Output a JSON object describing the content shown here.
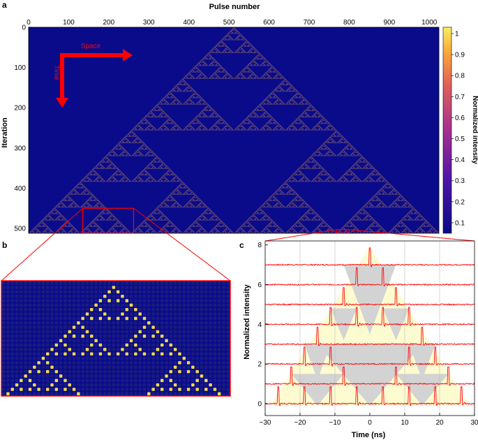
{
  "panels": {
    "a": "a",
    "b": "b",
    "c": "c"
  },
  "colors": {
    "background": "#0a0b8a",
    "pattern_on": "#f2d84a",
    "trace": "#ff0000",
    "zoom_box": "#ff0000",
    "triangle_fill": "#fdfbd0",
    "hole_fill": "#d3d3d3"
  },
  "chart_data": [
    {
      "panel": "a",
      "type": "heatmap",
      "title": "",
      "xlabel": "Pulse number",
      "ylabel": "Iteration",
      "x_ticks": [
        "0",
        "100",
        "200",
        "300",
        "400",
        "500",
        "600",
        "700",
        "800",
        "900",
        "1000"
      ],
      "y_ticks": [
        "0",
        "100",
        "200",
        "300",
        "400",
        "500"
      ],
      "xlim": [
        0,
        1024
      ],
      "ylim": [
        0,
        512
      ],
      "pattern": "Sierpinski triangle (rule 90), apex at pulse 512, iteration 0",
      "colorbar": {
        "label": "Normalized intensity",
        "ticks": [
          "0.1",
          "0.2",
          "0.3",
          "0.4",
          "0.5",
          "0.6",
          "0.7",
          "0.8",
          "0.9",
          "1"
        ],
        "range": [
          0.05,
          1.03
        ]
      },
      "annotations": {
        "space": "Space",
        "time": "Time"
      },
      "zoom_regions": [
        {
          "x_range": [
            135,
            262
          ],
          "y_range": [
            450,
            512
          ],
          "target_panel": "b"
        },
        {
          "x_range": [
            768,
            800
          ],
          "y_range": [
            503,
            512
          ],
          "target_panel": "c"
        }
      ]
    },
    {
      "panel": "b",
      "type": "heatmap",
      "title": "",
      "cols": 52,
      "rows": 26,
      "pattern": "magnified region of the Sierpinski pattern"
    },
    {
      "panel": "c",
      "type": "line",
      "title": "",
      "xlabel": "Time (ns)",
      "ylabel": "Normalized intensity",
      "xlim": [
        -30,
        30
      ],
      "ylim": [
        -0.6,
        8.2
      ],
      "x_ticks": [
        "−30",
        "−20",
        "−10",
        "0",
        "10",
        "20",
        "30"
      ],
      "y_ticks": [
        "0",
        "2",
        "4",
        "6",
        "8"
      ],
      "pulse_spacing_ns": 3.75,
      "trace_offsets": [
        0,
        1,
        2,
        3,
        4,
        5,
        6,
        7
      ],
      "series": [
        {
          "offset": 7,
          "pulse_times_ns": [
            0
          ]
        },
        {
          "offset": 6,
          "pulse_times_ns": [
            -3.75,
            3.75
          ]
        },
        {
          "offset": 5,
          "pulse_times_ns": [
            -7.5,
            7.5
          ]
        },
        {
          "offset": 4,
          "pulse_times_ns": [
            -11.25,
            -3.75,
            3.75,
            11.25
          ]
        },
        {
          "offset": 3,
          "pulse_times_ns": [
            -15,
            15
          ]
        },
        {
          "offset": 2,
          "pulse_times_ns": [
            -18.75,
            -11.25,
            11.25,
            18.75
          ]
        },
        {
          "offset": 1,
          "pulse_times_ns": [
            -22.5,
            -7.5,
            7.5,
            22.5
          ]
        },
        {
          "offset": 0,
          "pulse_times_ns": [
            -26.25,
            -18.75,
            -11.25,
            -3.75,
            3.75,
            11.25,
            18.75,
            26.25
          ]
        }
      ]
    }
  ]
}
